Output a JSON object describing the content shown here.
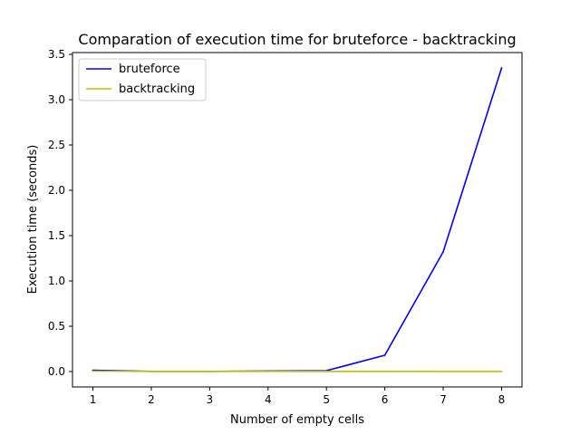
{
  "chart_data": {
    "type": "line",
    "title": "Comparation of execution time for bruteforce - backtracking",
    "xlabel": "Number of empty cells",
    "ylabel": "Execution time (seconds)",
    "x": [
      1,
      2,
      3,
      4,
      5,
      6,
      7,
      8
    ],
    "xlim": [
      0.65,
      8.35
    ],
    "ylim": [
      -0.17,
      3.52
    ],
    "xticks": [
      "1",
      "2",
      "3",
      "4",
      "5",
      "6",
      "7",
      "8"
    ],
    "yticks": [
      "0.0",
      "0.5",
      "1.0",
      "1.5",
      "2.0",
      "2.5",
      "3.0",
      "3.5"
    ],
    "grid": false,
    "legend_position": "top-left",
    "series": [
      {
        "name": "bruteforce",
        "color": "#0000ff",
        "values": [
          0.015,
          0.002,
          0.002,
          0.006,
          0.01,
          0.18,
          1.32,
          3.35
        ]
      },
      {
        "name": "backtracking",
        "color": "#bfbf00",
        "values": [
          0.005,
          0.002,
          0.002,
          0.002,
          0.002,
          0.002,
          0.001,
          0.001
        ]
      }
    ]
  }
}
